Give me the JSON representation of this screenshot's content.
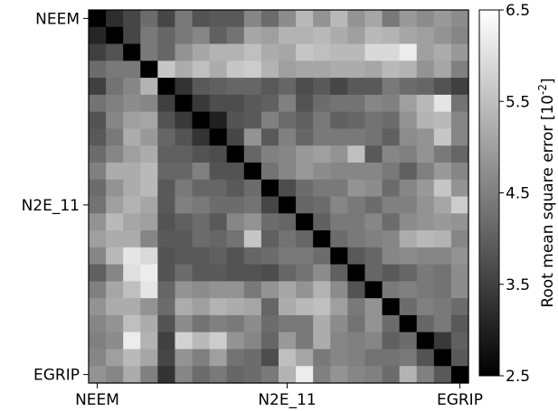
{
  "chart_data": {
    "type": "heatmap",
    "title": "",
    "xlabel": "",
    "ylabel": "",
    "size": 22,
    "x_tick_labels": [
      {
        "index": 0,
        "label": "NEEM"
      },
      {
        "index": 11,
        "label": "N2E_11"
      },
      {
        "index": 21,
        "label": "EGRIP"
      }
    ],
    "y_tick_labels": [
      {
        "index": 0,
        "label": "NEEM"
      },
      {
        "index": 11,
        "label": "N2E_11"
      },
      {
        "index": 21,
        "label": "EGRIP"
      }
    ],
    "colorbar": {
      "label": "Root mean square error [10",
      "label_exponent": "-2",
      "label_close": "]",
      "range": [
        2.5,
        6.5
      ],
      "ticks": [
        {
          "value": 2.5,
          "label": "2.5"
        },
        {
          "value": 3.5,
          "label": "3.5"
        },
        {
          "value": 4.5,
          "label": "4.5"
        },
        {
          "value": 5.5,
          "label": "5.5"
        },
        {
          "value": 6.5,
          "label": "6.5"
        }
      ],
      "colors": [
        "#000000",
        "#ffffff"
      ]
    },
    "values": [
      [
        2.5,
        3.2,
        3.6,
        4.2,
        3.6,
        4.4,
        3.8,
        3.9,
        3.9,
        4.6,
        4.2,
        4.7,
        5.4,
        4.8,
        5.4,
        4.8,
        5.1,
        4.4,
        4.9,
        4.7,
        4.9,
        4.7
      ],
      [
        3.1,
        2.5,
        3.6,
        4.4,
        4.1,
        4.4,
        4.6,
        4.0,
        4.3,
        5.1,
        5.0,
        5.3,
        5.3,
        5.4,
        5.2,
        5.0,
        5.4,
        5.3,
        5.1,
        5.0,
        4.8,
        4.6
      ],
      [
        3.5,
        3.8,
        2.5,
        4.4,
        4.1,
        4.8,
        5.1,
        5.3,
        5.3,
        5.5,
        5.2,
        5.1,
        5.6,
        5.5,
        5.4,
        5.4,
        5.9,
        5.9,
        6.2,
        5.0,
        5.2,
        4.9
      ],
      [
        4.2,
        4.4,
        4.4,
        2.5,
        5.6,
        5.2,
        5.5,
        5.2,
        5.6,
        5.7,
        5.3,
        5.0,
        5.1,
        5.1,
        5.2,
        5.2,
        5.1,
        5.4,
        5.3,
        4.8,
        5.1,
        4.5
      ],
      [
        3.5,
        4.3,
        4.6,
        5.3,
        2.5,
        3.3,
        3.9,
        4.0,
        4.1,
        4.1,
        3.9,
        4.1,
        3.7,
        3.9,
        3.6,
        3.9,
        3.9,
        4.4,
        4.2,
        4.1,
        3.8,
        3.5
      ],
      [
        4.3,
        4.5,
        4.7,
        4.6,
        3.5,
        2.5,
        3.4,
        3.7,
        3.7,
        3.9,
        4.0,
        4.5,
        3.8,
        4.2,
        4.3,
        4.3,
        4.6,
        4.5,
        5.0,
        5.4,
        6.1,
        4.3
      ],
      [
        3.8,
        4.6,
        5.0,
        5.1,
        3.8,
        3.4,
        2.5,
        3.0,
        3.8,
        3.9,
        4.5,
        4.2,
        4.0,
        4.4,
        4.0,
        4.1,
        4.3,
        4.2,
        4.8,
        5.3,
        5.4,
        4.6
      ],
      [
        3.9,
        4.4,
        5.2,
        4.9,
        4.1,
        3.8,
        3.3,
        2.5,
        3.6,
        4.8,
        3.9,
        4.5,
        4.1,
        4.4,
        4.4,
        4.4,
        4.3,
        4.0,
        4.7,
        4.8,
        5.6,
        4.6
      ],
      [
        4.2,
        4.6,
        5.0,
        5.2,
        4.0,
        4.0,
        3.8,
        3.7,
        2.5,
        4.1,
        4.5,
        4.6,
        4.9,
        5.0,
        4.8,
        5.5,
        3.9,
        4.6,
        4.5,
        4.8,
        4.4,
        4.1
      ],
      [
        4.5,
        5.2,
        5.2,
        5.4,
        4.1,
        4.1,
        4.5,
        3.8,
        3.8,
        2.5,
        4.3,
        4.6,
        4.9,
        4.7,
        4.6,
        4.6,
        4.6,
        4.4,
        4.0,
        4.5,
        4.9,
        4.6
      ],
      [
        4.2,
        4.8,
        5.2,
        5.4,
        3.9,
        4.4,
        4.1,
        4.1,
        3.9,
        4.2,
        2.5,
        3.7,
        4.2,
        4.4,
        4.4,
        4.8,
        4.7,
        4.2,
        4.6,
        4.9,
        5.6,
        4.8
      ],
      [
        4.3,
        5.0,
        5.3,
        5.1,
        3.9,
        4.5,
        4.4,
        4.2,
        4.2,
        4.3,
        3.6,
        2.5,
        4.1,
        4.2,
        4.6,
        4.4,
        4.2,
        4.5,
        4.5,
        4.8,
        5.1,
        5.7
      ],
      [
        4.8,
        5.4,
        5.1,
        5.0,
        3.8,
        4.0,
        4.2,
        3.9,
        4.6,
        4.8,
        4.2,
        4.1,
        2.5,
        4.0,
        4.4,
        4.4,
        4.6,
        4.2,
        4.7,
        4.8,
        4.9,
        4.8
      ],
      [
        5.0,
        5.2,
        5.2,
        4.6,
        3.9,
        3.9,
        4.2,
        4.1,
        4.3,
        5.6,
        4.0,
        4.3,
        4.1,
        2.5,
        4.2,
        4.4,
        4.5,
        4.6,
        5.2,
        5.4,
        5.3,
        4.6
      ],
      [
        4.6,
        5.4,
        6.1,
        5.9,
        3.8,
        3.9,
        3.9,
        4.0,
        3.8,
        4.1,
        4.2,
        4.4,
        4.4,
        4.2,
        2.5,
        3.9,
        4.1,
        4.6,
        4.7,
        4.6,
        4.6,
        4.8
      ],
      [
        4.0,
        4.6,
        6.0,
        6.2,
        3.8,
        4.2,
        3.9,
        3.9,
        3.8,
        3.8,
        3.7,
        4.1,
        4.3,
        4.7,
        4.0,
        2.5,
        4.1,
        3.9,
        4.1,
        4.4,
        4.3,
        4.7
      ],
      [
        4.5,
        5.1,
        5.5,
        6.1,
        4.1,
        4.8,
        4.7,
        4.8,
        4.8,
        4.4,
        4.8,
        5.1,
        4.8,
        5.3,
        4.7,
        3.8,
        2.5,
        4.4,
        4.5,
        4.4,
        4.3,
        4.7
      ],
      [
        4.8,
        5.2,
        5.2,
        4.8,
        4.2,
        5.2,
        5.0,
        5.3,
        5.2,
        5.1,
        4.1,
        5.2,
        5.4,
        5.5,
        5.0,
        4.4,
        4.8,
        2.5,
        4.2,
        4.5,
        4.4,
        4.2
      ],
      [
        4.6,
        4.8,
        5.5,
        5.2,
        3.8,
        4.7,
        4.3,
        4.5,
        4.4,
        4.7,
        4.2,
        4.4,
        4.4,
        5.2,
        4.7,
        4.3,
        4.8,
        4.2,
        2.5,
        4.1,
        4.4,
        3.9
      ],
      [
        4.5,
        4.7,
        6.2,
        5.3,
        3.5,
        5.8,
        5.4,
        5.7,
        4.8,
        4.6,
        4.1,
        4.9,
        4.4,
        5.2,
        4.6,
        4.5,
        4.6,
        4.0,
        4.2,
        2.5,
        3.4,
        4.0
      ],
      [
        4.6,
        5.0,
        5.4,
        5.1,
        3.6,
        4.8,
        4.5,
        5.0,
        4.3,
        4.2,
        3.7,
        5.5,
        5.1,
        4.4,
        4.6,
        4.5,
        4.3,
        4.3,
        4.4,
        3.8,
        2.5,
        3.9
      ],
      [
        4.8,
        4.6,
        5.2,
        4.5,
        3.3,
        4.6,
        4.2,
        4.4,
        4.1,
        4.2,
        4.4,
        5.3,
        6.2,
        4.5,
        4.8,
        4.6,
        4.5,
        4.2,
        5.3,
        4.5,
        3.9,
        2.5
      ]
    ]
  }
}
